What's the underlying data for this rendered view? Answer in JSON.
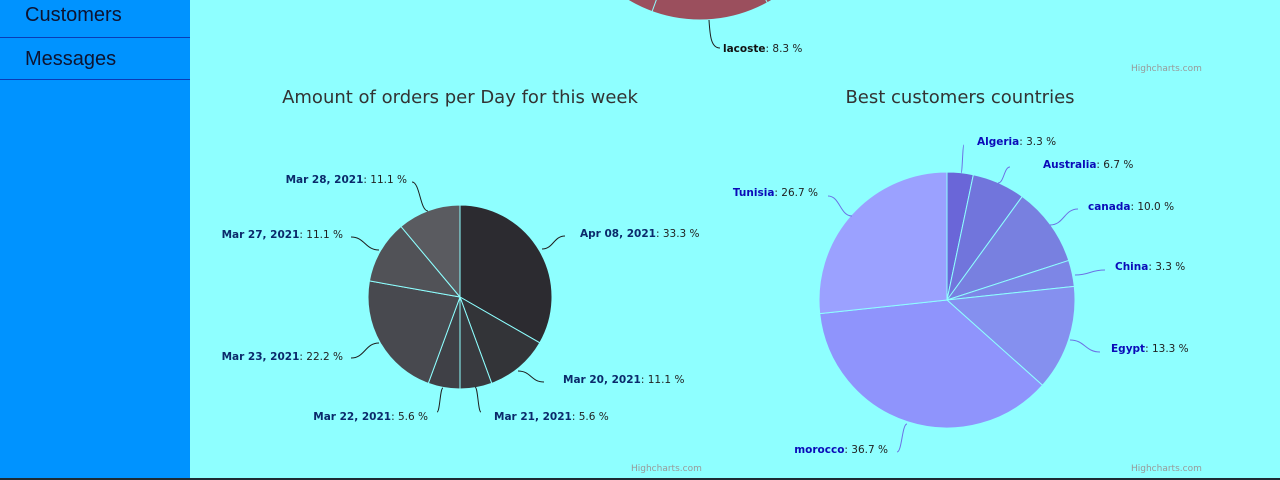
{
  "sidebar": {
    "items": [
      {
        "label": "Customers"
      },
      {
        "label": "Messages"
      }
    ]
  },
  "credits": {
    "label": "Highcharts.com"
  },
  "chart_data": [
    {
      "type": "pie",
      "title": "",
      "partial": true,
      "visible_labels": [
        {
          "name": "lacoste",
          "value": 8.3
        }
      ],
      "colors": {
        "slice": "#9b4f5d",
        "stroke": "#8effff"
      }
    },
    {
      "type": "pie",
      "title": "Amount of orders per Day for this week",
      "unit": "%",
      "slices": [
        {
          "name": "Apr 08, 2021",
          "value": 33.3,
          "color": "#2c2b30"
        },
        {
          "name": "Mar 20, 2021",
          "value": 11.1,
          "color": "#333438"
        },
        {
          "name": "Mar 21, 2021",
          "value": 5.6,
          "color": "#393a3f"
        },
        {
          "name": "Mar 22, 2021",
          "value": 5.6,
          "color": "#3f4046"
        },
        {
          "name": "Mar 23, 2021",
          "value": 22.2,
          "color": "#48494f"
        },
        {
          "name": "Mar 27, 2021",
          "value": 11.1,
          "color": "#515257"
        },
        {
          "name": "Mar 28, 2021",
          "value": 11.1,
          "color": "#5a5b60"
        }
      ],
      "colors": {
        "label": "#0b2a6b",
        "connector": "#1e1e1e",
        "stroke": "#8effff"
      }
    },
    {
      "type": "pie",
      "title": "Best customers countries",
      "unit": "%",
      "slices": [
        {
          "name": "Algeria",
          "value": 3.3,
          "color": "#6a66d8"
        },
        {
          "name": "Australia",
          "value": 6.7,
          "color": "#7175dc"
        },
        {
          "name": "canada",
          "value": 10.0,
          "color": "#7880e0"
        },
        {
          "name": "China",
          "value": 3.3,
          "color": "#7d86e6"
        },
        {
          "name": "Egypt",
          "value": 13.3,
          "color": "#8590ef"
        },
        {
          "name": "morocco",
          "value": 36.7,
          "color": "#8f94fc"
        },
        {
          "name": "Tunisia",
          "value": 26.7,
          "color": "#9ba1ff"
        }
      ],
      "colors": {
        "label": "#0b0bb8",
        "connector": "#6c72e5",
        "stroke": "#8effff"
      }
    }
  ]
}
